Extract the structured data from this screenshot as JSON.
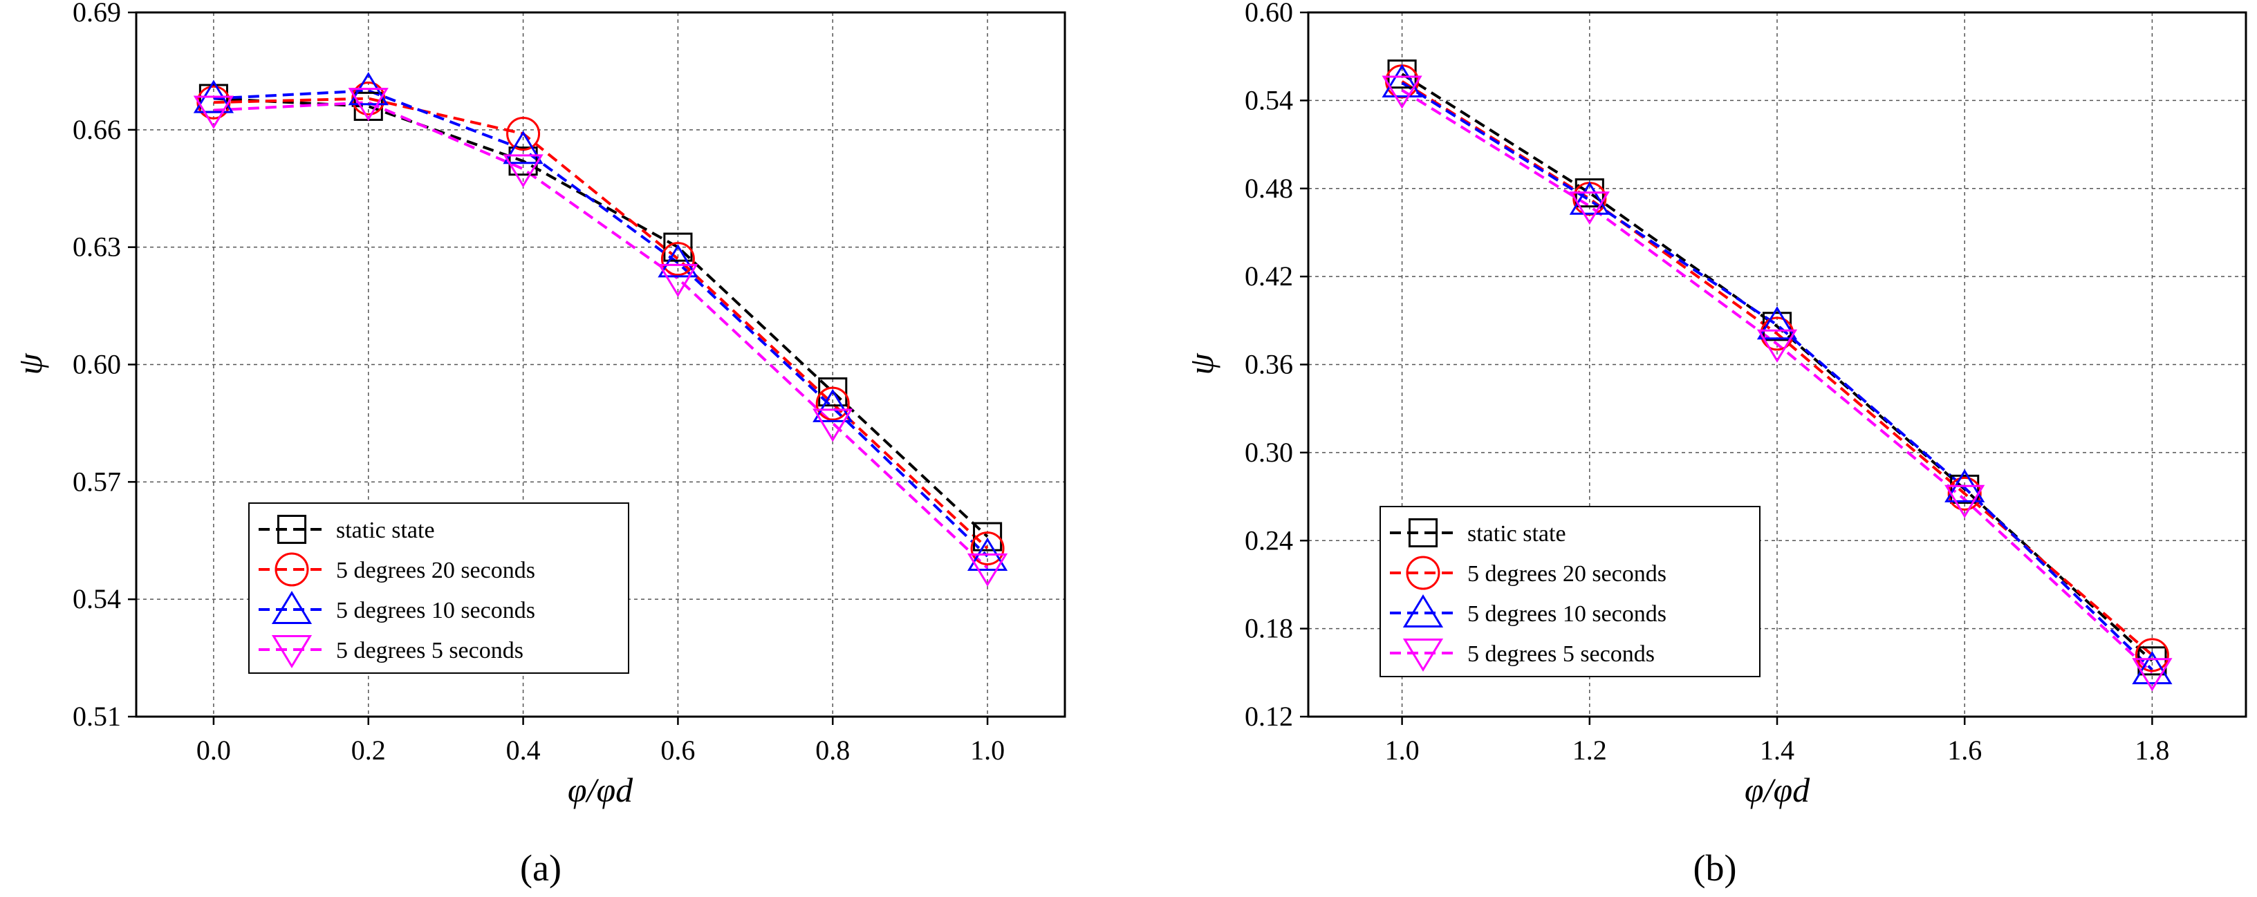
{
  "figure": {
    "colors": {
      "static state": "#000000",
      "5 degrees 20 seconds": "#ff0000",
      "5 degrees 10 seconds": "#0000ff",
      "5 degrees 5 seconds": "#ff00ff"
    }
  },
  "chart_data": [
    {
      "id": "a",
      "type": "line",
      "panel_label": "(a)",
      "xlabel": "φ/φd",
      "ylabel": "ψ",
      "xlim": [
        -0.1,
        1.1
      ],
      "ylim": [
        0.51,
        0.69
      ],
      "xticks": [
        "0.0",
        "0.2",
        "0.4",
        "0.6",
        "0.8",
        "1.0"
      ],
      "yticks": [
        "0.51",
        "0.54",
        "0.57",
        "0.60",
        "0.63",
        "0.66",
        "0.69"
      ],
      "grid": true,
      "legend_position": "bottom-left",
      "x": [
        0.0,
        0.2,
        0.4,
        0.6,
        0.8,
        1.0
      ],
      "series": [
        {
          "name": "static state",
          "marker": "square",
          "color": "#000000",
          "values": [
            0.668,
            0.666,
            0.652,
            0.63,
            0.593,
            0.556
          ]
        },
        {
          "name": "5 degrees 20 seconds",
          "marker": "circle",
          "color": "#ff0000",
          "values": [
            0.667,
            0.668,
            0.659,
            0.627,
            0.59,
            0.553
          ]
        },
        {
          "name": "5 degrees 10 seconds",
          "marker": "triangle-up",
          "color": "#0000ff",
          "values": [
            0.668,
            0.67,
            0.655,
            0.626,
            0.589,
            0.551
          ]
        },
        {
          "name": "5 degrees 5 seconds",
          "marker": "triangle-down",
          "color": "#ff00ff",
          "values": [
            0.665,
            0.667,
            0.65,
            0.622,
            0.585,
            0.548
          ]
        }
      ]
    },
    {
      "id": "b",
      "type": "line",
      "panel_label": "(b)",
      "xlabel": "φ/φd",
      "ylabel": "ψ",
      "xlim": [
        0.9,
        1.9
      ],
      "ylim": [
        0.12,
        0.6
      ],
      "xticks": [
        "1.0",
        "1.2",
        "1.4",
        "1.6",
        "1.8"
      ],
      "yticks": [
        "0.12",
        "0.18",
        "0.24",
        "0.30",
        "0.36",
        "0.42",
        "0.48",
        "0.54",
        "0.60"
      ],
      "grid": true,
      "legend_position": "bottom-left",
      "x": [
        1.0,
        1.2,
        1.4,
        1.6,
        1.8
      ],
      "series": [
        {
          "name": "static state",
          "marker": "square",
          "color": "#000000",
          "values": [
            0.558,
            0.477,
            0.386,
            0.275,
            0.158
          ]
        },
        {
          "name": "5 degrees 20 seconds",
          "marker": "circle",
          "color": "#ff0000",
          "values": [
            0.553,
            0.473,
            0.381,
            0.272,
            0.162
          ]
        },
        {
          "name": "5 degrees 10 seconds",
          "marker": "triangle-up",
          "color": "#0000ff",
          "values": [
            0.552,
            0.472,
            0.387,
            0.276,
            0.152
          ]
        },
        {
          "name": "5 degrees 5 seconds",
          "marker": "triangle-down",
          "color": "#ff00ff",
          "values": [
            0.547,
            0.468,
            0.374,
            0.268,
            0.15
          ]
        }
      ]
    }
  ]
}
